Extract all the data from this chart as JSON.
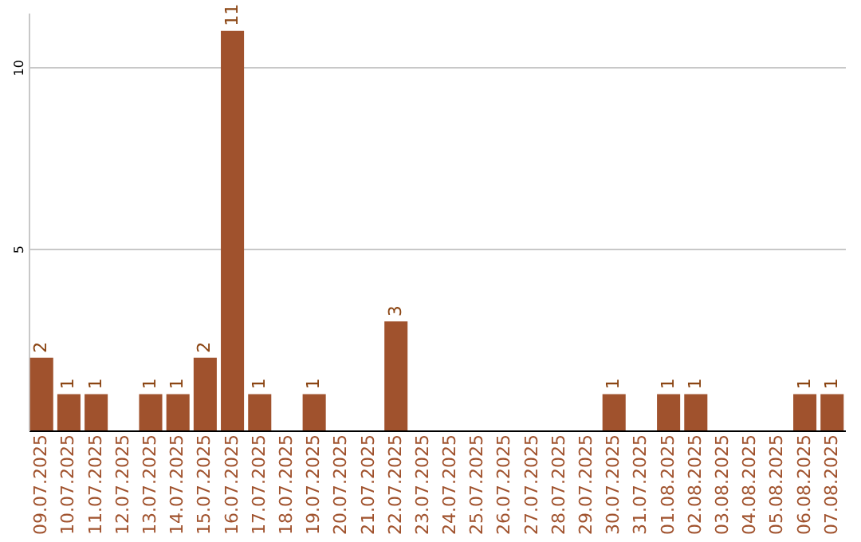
{
  "chart_data": {
    "type": "bar",
    "categories": [
      "09.07.2025",
      "10.07.2025",
      "11.07.2025",
      "12.07.2025",
      "13.07.2025",
      "14.07.2025",
      "15.07.2025",
      "16.07.2025",
      "17.07.2025",
      "18.07.2025",
      "19.07.2025",
      "20.07.2025",
      "21.07.2025",
      "22.07.2025",
      "23.07.2025",
      "24.07.2025",
      "25.07.2025",
      "26.07.2025",
      "27.07.2025",
      "28.07.2025",
      "29.07.2025",
      "30.07.2025",
      "31.07.2025",
      "01.08.2025",
      "02.08.2025",
      "03.08.2025",
      "04.08.2025",
      "05.08.2025",
      "06.08.2025",
      "07.08.2025"
    ],
    "values": [
      2,
      1,
      1,
      0,
      1,
      1,
      2,
      11,
      1,
      0,
      1,
      0,
      0,
      3,
      0,
      0,
      0,
      0,
      0,
      0,
      0,
      1,
      0,
      1,
      1,
      0,
      0,
      0,
      1,
      1
    ],
    "value_labels": [
      "2",
      "1",
      "1",
      null,
      "1",
      "1",
      "2",
      "11",
      "1",
      null,
      "1",
      null,
      null,
      "3",
      null,
      null,
      null,
      null,
      null,
      null,
      null,
      "1",
      null,
      "1",
      "1",
      null,
      null,
      null,
      "1",
      "1"
    ],
    "color": "#a0522d",
    "ylim": [
      0,
      11.5
    ],
    "yticks": [
      5,
      10
    ],
    "grid": "y"
  }
}
